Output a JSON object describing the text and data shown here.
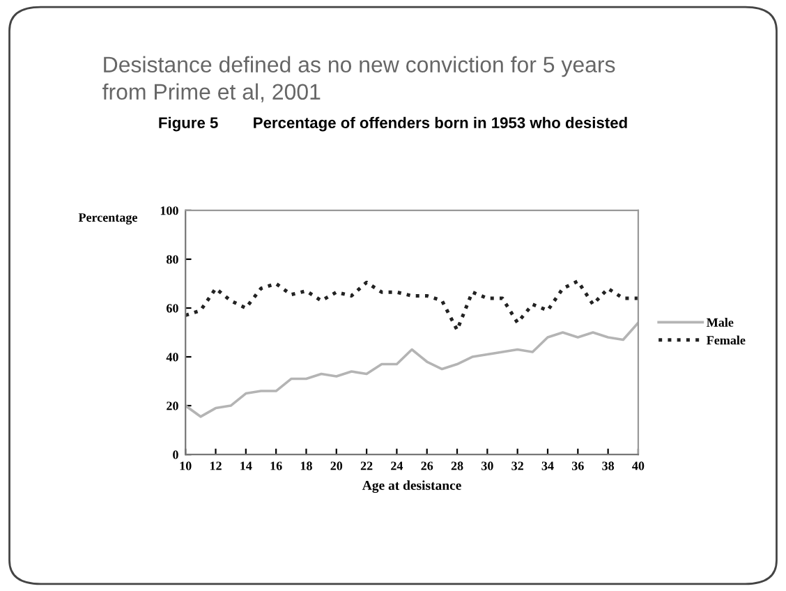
{
  "chart_data": {
    "type": "line",
    "title": "Desistance defined as no new conviction for 5 years\nfrom Prime et al, 2001",
    "subtitle": "Figure 5        Percentage of offenders born in 1953 who desisted",
    "xlabel": "Age at desistance",
    "ylabel": "Percentage",
    "x": [
      10,
      11,
      12,
      13,
      14,
      15,
      16,
      17,
      18,
      19,
      20,
      21,
      22,
      23,
      24,
      25,
      26,
      27,
      28,
      29,
      30,
      31,
      32,
      33,
      34,
      35,
      36,
      37,
      38,
      39,
      40
    ],
    "series": [
      {
        "name": "Male",
        "color": "#b4b4b4",
        "line_style": "solid",
        "values": [
          20,
          15.5,
          19,
          20,
          25,
          26,
          26,
          31,
          31,
          33,
          32,
          34,
          33,
          37,
          37,
          43,
          38,
          35,
          37,
          40,
          41,
          42,
          43,
          42,
          48,
          50,
          48,
          50,
          48,
          47,
          54
        ]
      },
      {
        "name": "Female",
        "color": "#222222",
        "line_style": "dotted",
        "values": [
          57,
          59,
          68,
          63,
          60,
          68,
          70,
          65.5,
          67,
          63,
          66.5,
          65,
          70.5,
          66.5,
          66.5,
          65,
          65,
          63,
          51,
          66.5,
          64,
          64,
          54,
          61.5,
          59,
          68,
          71,
          61.5,
          68,
          64,
          64
        ]
      }
    ],
    "xlim": [
      10,
      40
    ],
    "xticks": [
      10,
      12,
      14,
      16,
      18,
      20,
      22,
      24,
      26,
      28,
      30,
      32,
      34,
      36,
      38,
      40
    ],
    "ylim": [
      0,
      100
    ],
    "yticks": [
      0,
      20,
      40,
      60,
      80,
      100
    ],
    "grid": false,
    "legend": "right",
    "marker": "none"
  }
}
